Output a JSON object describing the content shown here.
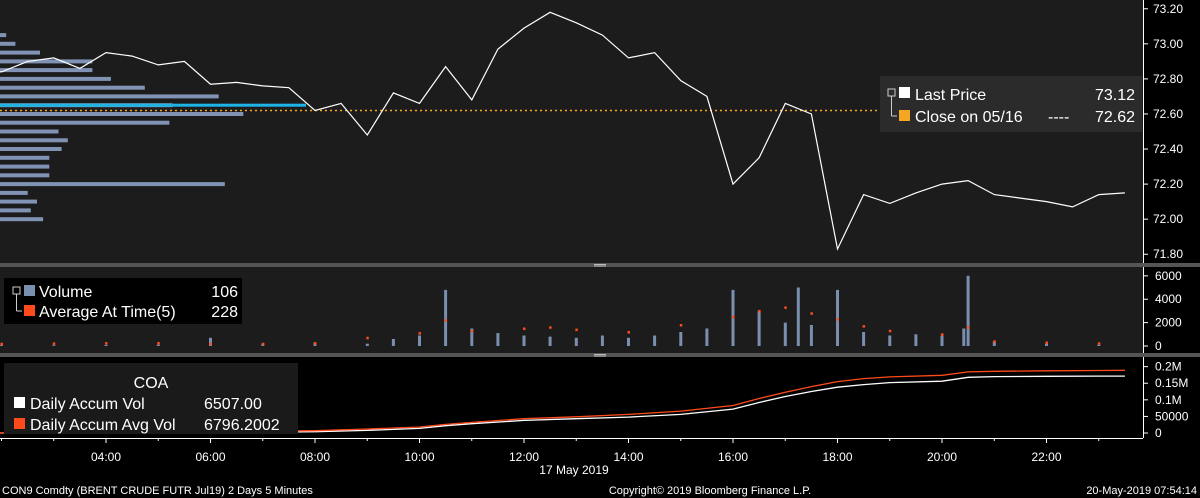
{
  "footer": {
    "left": "CON9 Comdty (BRENT CRUDE FUTR  Jul19) 2 Days 5 Minutes",
    "center": "Copyright© 2019 Bloomberg Finance L.P.",
    "right": "20-May-2019 07:54:14"
  },
  "x_axis": {
    "ticks": [
      "04:00",
      "06:00",
      "08:00",
      "10:00",
      "12:00",
      "14:00",
      "16:00",
      "18:00",
      "20:00",
      "22:00"
    ],
    "date_label": "17 May 2019"
  },
  "colors": {
    "background": "#000000",
    "panel": "#1c1c1c",
    "price_line": "#ffffff",
    "close_line": "#f5a623",
    "volume_bar": "#7a8fb0",
    "avg_dot": "#ff4a1c",
    "accum_vol": "#ffffff",
    "accum_avg": "#ff4a1c",
    "profile_bar": "#8093b5",
    "profile_highlight": "#1fb4e6"
  },
  "chart_data": [
    {
      "type": "line",
      "panel": "price",
      "ylim": [
        71.75,
        73.25
      ],
      "yticks": [
        "73.20",
        "73.00",
        "72.80",
        "72.60",
        "72.40",
        "72.20",
        "72.00",
        "71.80"
      ],
      "legend": {
        "last_price_label": "Last Price",
        "last_price_value": "73.12",
        "close_label": "Close on 05/16",
        "close_dashes": "----",
        "close_value": "72.62"
      },
      "close_level": 72.62,
      "series": [
        {
          "name": "Last Price",
          "x": [
            "01:35",
            "02:00",
            "02:30",
            "03:00",
            "03:30",
            "04:00",
            "04:30",
            "05:00",
            "05:30",
            "06:00",
            "06:30",
            "07:00",
            "07:30",
            "08:00",
            "08:30",
            "09:00",
            "09:30",
            "10:00",
            "10:30",
            "11:00",
            "11:30",
            "12:00",
            "12:30",
            "13:00",
            "13:30",
            "14:00",
            "14:30",
            "15:00",
            "15:30",
            "16:00",
            "16:30",
            "17:00",
            "17:30",
            "18:00",
            "18:30",
            "19:00",
            "19:30",
            "20:00",
            "20:30",
            "21:00",
            "21:30",
            "22:00",
            "22:30",
            "23:00",
            "23:30"
          ],
          "values": [
            72.85,
            72.84,
            72.9,
            72.92,
            72.86,
            72.95,
            72.93,
            72.88,
            72.9,
            72.77,
            72.78,
            72.76,
            72.75,
            72.62,
            72.66,
            72.48,
            72.72,
            72.66,
            72.87,
            72.68,
            72.97,
            73.09,
            73.18,
            73.12,
            73.05,
            72.92,
            72.95,
            72.79,
            72.7,
            72.2,
            72.35,
            72.66,
            72.6,
            71.83,
            72.14,
            72.09,
            72.15,
            72.2,
            72.22,
            72.14,
            72.12,
            72.1,
            72.07,
            72.14,
            72.15
          ]
        }
      ],
      "volume_profile": {
        "price_levels": [
          72.0,
          72.05,
          72.1,
          72.15,
          72.2,
          72.25,
          72.3,
          72.35,
          72.4,
          72.45,
          72.5,
          72.55,
          72.6,
          72.65,
          72.7,
          72.75,
          72.8,
          72.85,
          72.9,
          72.95,
          73.0,
          73.05
        ],
        "relative_volume": [
          0.14,
          0.1,
          0.12,
          0.09,
          0.73,
          0.16,
          0.16,
          0.16,
          0.2,
          0.22,
          0.19,
          0.55,
          0.79,
          0.56,
          0.71,
          0.47,
          0.36,
          0.3,
          0.3,
          0.13,
          0.05,
          0.02
        ],
        "highlight_level": 72.65
      }
    },
    {
      "type": "bar",
      "panel": "volume",
      "ylim": [
        0,
        6500
      ],
      "yticks": [
        "6000",
        "4000",
        "2000",
        "0"
      ],
      "legend": {
        "volume_label": "Volume",
        "volume_value": "106",
        "avg_label": "Average At Time(5)",
        "avg_value": "228"
      },
      "series": [
        {
          "name": "Volume",
          "x": [
            "02:00",
            "03:00",
            "04:00",
            "05:00",
            "06:00",
            "07:00",
            "08:00",
            "09:00",
            "09:30",
            "10:00",
            "10:30",
            "11:00",
            "11:30",
            "12:00",
            "12:30",
            "13:00",
            "13:30",
            "14:00",
            "14:30",
            "15:00",
            "15:30",
            "16:00",
            "16:30",
            "17:00",
            "17:15",
            "17:30",
            "18:00",
            "18:30",
            "19:00",
            "19:30",
            "20:00",
            "20:25",
            "20:30",
            "21:00",
            "22:00",
            "23:00"
          ],
          "values": [
            80,
            70,
            90,
            110,
            700,
            200,
            300,
            200,
            600,
            900,
            4800,
            1500,
            1100,
            900,
            800,
            700,
            900,
            700,
            900,
            1200,
            1500,
            4800,
            3000,
            2000,
            5000,
            1800,
            4800,
            1200,
            900,
            1000,
            900,
            1500,
            6000,
            400,
            200,
            106
          ]
        },
        {
          "name": "Average At Time(5)",
          "x": [
            "02:00",
            "03:00",
            "04:00",
            "05:00",
            "06:00",
            "07:00",
            "08:00",
            "09:00",
            "10:00",
            "10:30",
            "11:00",
            "12:00",
            "12:30",
            "13:00",
            "14:00",
            "15:00",
            "16:00",
            "16:30",
            "17:00",
            "17:30",
            "18:00",
            "18:30",
            "19:00",
            "20:00",
            "20:30",
            "21:00",
            "22:00",
            "23:00"
          ],
          "values": [
            200,
            220,
            250,
            260,
            200,
            200,
            250,
            700,
            1100,
            2200,
            1300,
            1500,
            1600,
            1400,
            1200,
            1800,
            2500,
            3000,
            3300,
            2800,
            2300,
            1700,
            1300,
            1000,
            1600,
            400,
            300,
            228
          ]
        }
      ]
    },
    {
      "type": "line",
      "panel": "accumulation",
      "ylim": [
        -15000,
        220000
      ],
      "yticks": [
        "0.2M",
        "0.15M",
        "0.1M",
        "50000",
        "0"
      ],
      "legend": {
        "title": "COA",
        "accum_label": "Daily Accum Vol",
        "accum_value": "6507.00",
        "avg_label": "Daily Accum Avg Vol",
        "avg_value": "6796.2002"
      },
      "series": [
        {
          "name": "Daily Accum Vol",
          "x": [
            "01:35",
            "04:00",
            "06:00",
            "08:00",
            "09:00",
            "10:00",
            "10:30",
            "11:00",
            "12:00",
            "13:00",
            "14:00",
            "15:00",
            "16:00",
            "16:30",
            "17:00",
            "17:30",
            "18:00",
            "18:30",
            "19:00",
            "20:00",
            "20:30",
            "21:00",
            "22:00",
            "23:00",
            "23:30"
          ],
          "values": [
            0,
            300,
            1500,
            4000,
            8000,
            14000,
            22000,
            28000,
            38000,
            43000,
            48000,
            56000,
            72000,
            92000,
            110000,
            125000,
            138000,
            146000,
            152000,
            156000,
            168000,
            170000,
            171000,
            171500,
            171600
          ]
        },
        {
          "name": "Daily Accum Avg Vol",
          "x": [
            "01:35",
            "04:00",
            "06:00",
            "08:00",
            "09:00",
            "10:00",
            "10:30",
            "11:00",
            "12:00",
            "13:00",
            "14:00",
            "15:00",
            "16:00",
            "16:30",
            "17:00",
            "17:30",
            "18:00",
            "18:30",
            "19:00",
            "20:00",
            "20:30",
            "21:00",
            "22:00",
            "23:00",
            "23:30"
          ],
          "values": [
            0,
            1000,
            3000,
            7000,
            12000,
            18000,
            26000,
            32000,
            43000,
            49000,
            56000,
            66000,
            83000,
            104000,
            123000,
            140000,
            155000,
            164000,
            169000,
            174000,
            184000,
            186000,
            187500,
            188500,
            189000
          ]
        }
      ]
    }
  ]
}
